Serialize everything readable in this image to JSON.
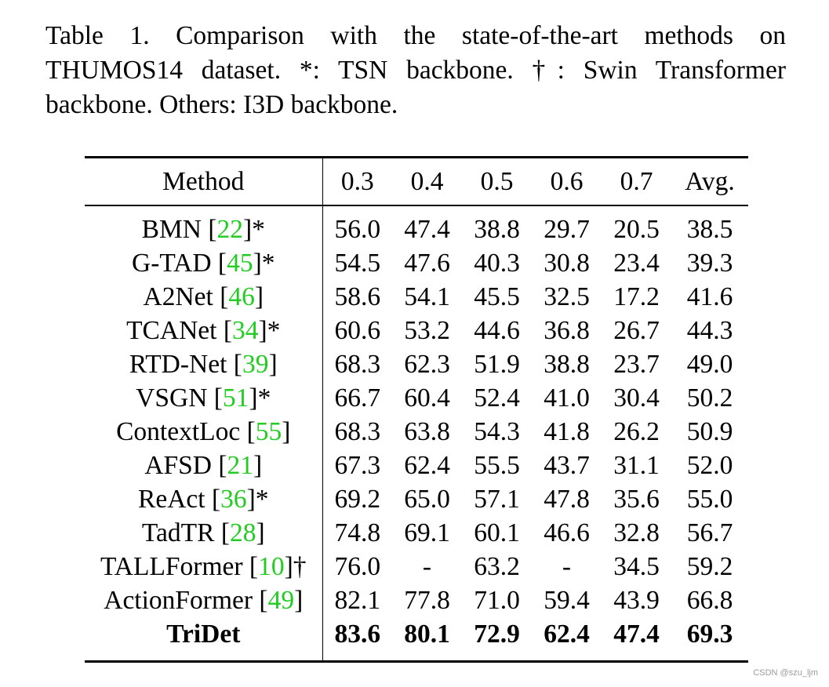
{
  "caption": "Table 1. Comparison with the state-of-the-art methods on THUMOS14 dataset. *: TSN backbone. †: Swin Transformer backbone. Others: I3D backbone.",
  "table": {
    "headers": [
      "Method",
      "0.3",
      "0.4",
      "0.5",
      "0.6",
      "0.7",
      "Avg."
    ],
    "rows": [
      {
        "name": "BMN",
        "ref": "22",
        "mark": "*",
        "values": [
          "56.0",
          "47.4",
          "38.8",
          "29.7",
          "20.5",
          "38.5"
        ]
      },
      {
        "name": "G-TAD",
        "ref": "45",
        "mark": "*",
        "values": [
          "54.5",
          "47.6",
          "40.3",
          "30.8",
          "23.4",
          "39.3"
        ]
      },
      {
        "name": "A2Net",
        "ref": "46",
        "mark": "",
        "values": [
          "58.6",
          "54.1",
          "45.5",
          "32.5",
          "17.2",
          "41.6"
        ]
      },
      {
        "name": "TCANet",
        "ref": "34",
        "mark": "*",
        "values": [
          "60.6",
          "53.2",
          "44.6",
          "36.8",
          "26.7",
          "44.3"
        ]
      },
      {
        "name": "RTD-Net",
        "ref": "39",
        "mark": "",
        "values": [
          "68.3",
          "62.3",
          "51.9",
          "38.8",
          "23.7",
          "49.0"
        ]
      },
      {
        "name": "VSGN",
        "ref": "51",
        "mark": "*",
        "values": [
          "66.7",
          "60.4",
          "52.4",
          "41.0",
          "30.4",
          "50.2"
        ]
      },
      {
        "name": "ContextLoc",
        "ref": "55",
        "mark": "",
        "values": [
          "68.3",
          "63.8",
          "54.3",
          "41.8",
          "26.2",
          "50.9"
        ]
      },
      {
        "name": "AFSD",
        "ref": "21",
        "mark": "",
        "values": [
          "67.3",
          "62.4",
          "55.5",
          "43.7",
          "31.1",
          "52.0"
        ]
      },
      {
        "name": "ReAct",
        "ref": "36",
        "mark": "*",
        "values": [
          "69.2",
          "65.0",
          "57.1",
          "47.8",
          "35.6",
          "55.0"
        ]
      },
      {
        "name": "TadTR",
        "ref": "28",
        "mark": "",
        "values": [
          "74.8",
          "69.1",
          "60.1",
          "46.6",
          "32.8",
          "56.7"
        ]
      },
      {
        "name": "TALLFormer",
        "ref": "10",
        "mark": "†",
        "values": [
          "76.0",
          "-",
          "63.2",
          "-",
          "34.5",
          "59.2"
        ]
      },
      {
        "name": "ActionFormer",
        "ref": "49",
        "mark": "",
        "values": [
          "82.1",
          "77.8",
          "71.0",
          "59.4",
          "43.9",
          "66.8"
        ]
      },
      {
        "name": "TriDet",
        "ref": "",
        "mark": "",
        "values": [
          "83.6",
          "80.1",
          "72.9",
          "62.4",
          "47.4",
          "69.3"
        ]
      }
    ]
  },
  "watermark": "CSDN @szu_ljm",
  "colors": {
    "ref_link": "#22cc22"
  }
}
